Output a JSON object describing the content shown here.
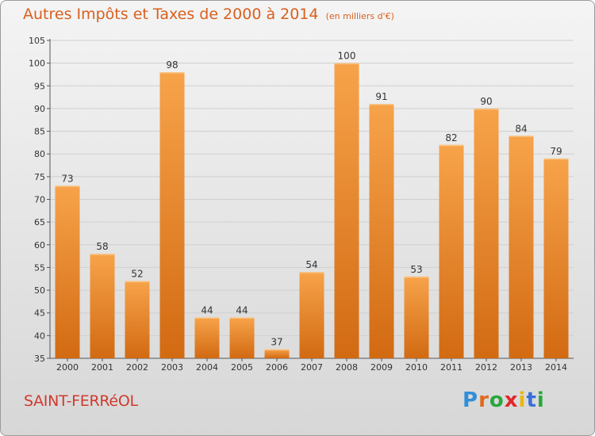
{
  "title": "Autres Impôts et Taxes de 2000 à 2014",
  "subtitle": "(en milliers d'€)",
  "commune": "SAINT-FERRéOL",
  "logo": {
    "text": "Proxiti",
    "colors": [
      "#2f8fd8",
      "#e06a1b",
      "#27a83c",
      "#e02828",
      "#e8b710",
      "#3a6fd8",
      "#27a83c"
    ]
  },
  "colors": {
    "bar_light": "#f7a34a",
    "bar_dark": "#d26a12",
    "title": "#d9601f",
    "commune": "#d03a2e",
    "grid": "#cfcfcf"
  },
  "chart_data": {
    "type": "bar",
    "title": "Autres Impôts et Taxes de 2000 à 2014",
    "subtitle": "(en milliers d'€)",
    "categories": [
      "2000",
      "2001",
      "2002",
      "2003",
      "2004",
      "2005",
      "2006",
      "2007",
      "2008",
      "2009",
      "2010",
      "2011",
      "2012",
      "2013",
      "2014"
    ],
    "values": [
      73,
      58,
      52,
      98,
      44,
      44,
      37,
      54,
      100,
      91,
      53,
      82,
      90,
      84,
      79
    ],
    "ylim": [
      35,
      105
    ],
    "yticks": [
      35,
      40,
      45,
      50,
      55,
      60,
      65,
      70,
      75,
      80,
      85,
      90,
      95,
      100,
      105
    ],
    "grid": true,
    "data_labels": true
  }
}
